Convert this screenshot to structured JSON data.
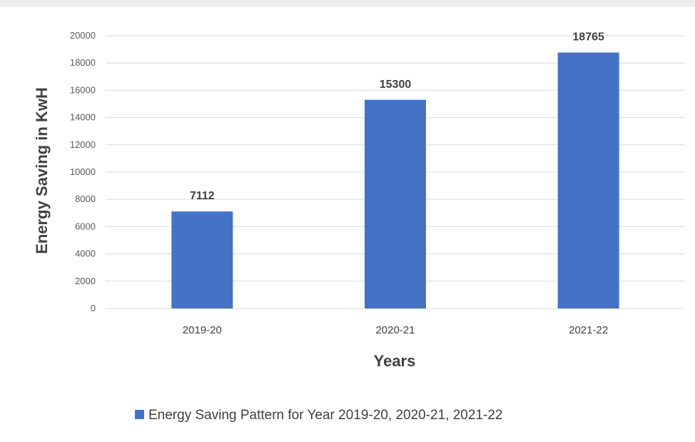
{
  "chart_data": {
    "type": "bar",
    "title": "",
    "xlabel": "Years",
    "ylabel": "Energy Saving in KwH",
    "categories": [
      "2019-20",
      "2020-21",
      "2021-22"
    ],
    "series": [
      {
        "name": "Energy Saving Pattern for Year 2019-20, 2020-21, 2021-22",
        "values": [
          7112,
          15300,
          18765
        ],
        "color": "#4472c4"
      }
    ],
    "data_labels": [
      "7112",
      "15300",
      "18765"
    ],
    "ylim": [
      0,
      20000
    ],
    "yticks": [
      0,
      2000,
      4000,
      6000,
      8000,
      10000,
      12000,
      14000,
      16000,
      18000,
      20000
    ],
    "grid": true,
    "legend_position": "bottom"
  }
}
